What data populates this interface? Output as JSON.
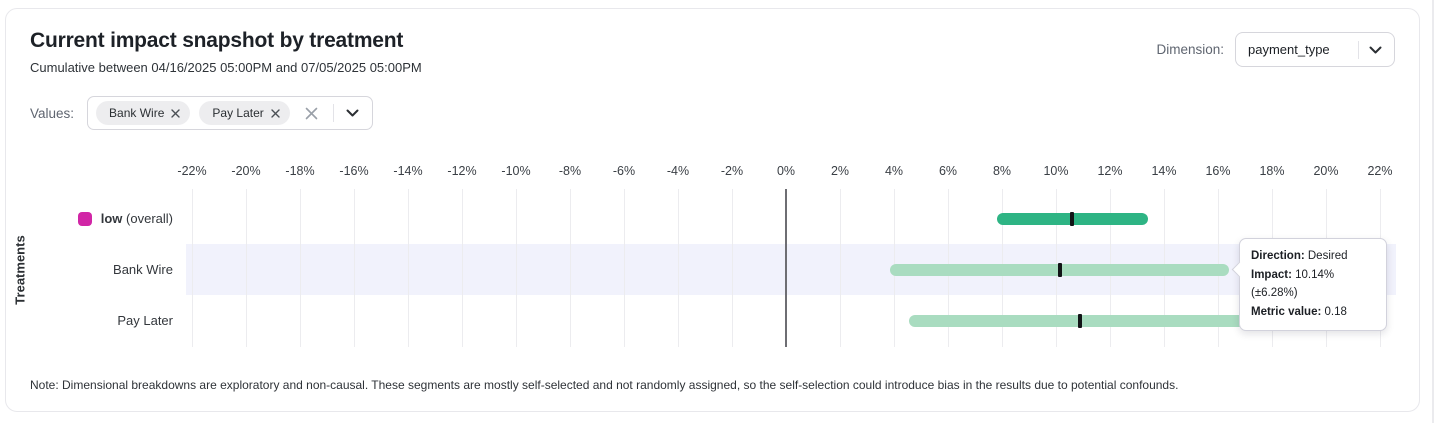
{
  "header": {
    "title": "Current impact snapshot by treatment",
    "subtitle": "Cumulative between 04/16/2025 05:00PM and 07/05/2025 05:00PM",
    "dimension_label": "Dimension:",
    "dimension_value": "payment_type"
  },
  "filters": {
    "values_label": "Values:",
    "chips": [
      "Bank Wire",
      "Pay Later"
    ]
  },
  "note": "Note: Dimensional breakdowns are exploratory and non-causal. These segments are mostly self-selected and not randomly assigned, so the self-selection could introduce bias in the results due to potential confounds.",
  "chart_data": {
    "type": "bar",
    "orientation": "horizontal-range",
    "ylabel": "Treatments",
    "axis": {
      "unit": "%",
      "tick_min": -22,
      "tick_max": 22,
      "tick_step": 2,
      "grid": true,
      "zero_line": true
    },
    "rows": [
      {
        "label": "low",
        "label_suffix": " (overall)",
        "impact_pct": 10.6,
        "margin_pct": 2.8,
        "bar_color": "#2eb484",
        "swatch_color": "#d126a6",
        "highlighted": false
      },
      {
        "label": "Bank Wire",
        "label_suffix": "",
        "impact_pct": 10.14,
        "margin_pct": 6.28,
        "bar_color": "#a9dcc0",
        "swatch_color": "",
        "highlighted": true
      },
      {
        "label": "Pay Later",
        "label_suffix": "",
        "impact_pct": 10.9,
        "margin_pct": 6.35,
        "bar_color": "#a9dcc0",
        "swatch_color": "",
        "highlighted": false
      }
    ],
    "colors": {
      "marker": "#121417",
      "highlight_band": "#f1f2fc",
      "zero_line": "#6e6e73",
      "gridline": "#ececef"
    },
    "tooltip": {
      "direction_label": "Direction:",
      "direction_value": "Desired",
      "impact_label": "Impact:",
      "impact_value": "10.14% (±6.28%)",
      "metric_label": "Metric value:",
      "metric_value": "0.18"
    }
  }
}
